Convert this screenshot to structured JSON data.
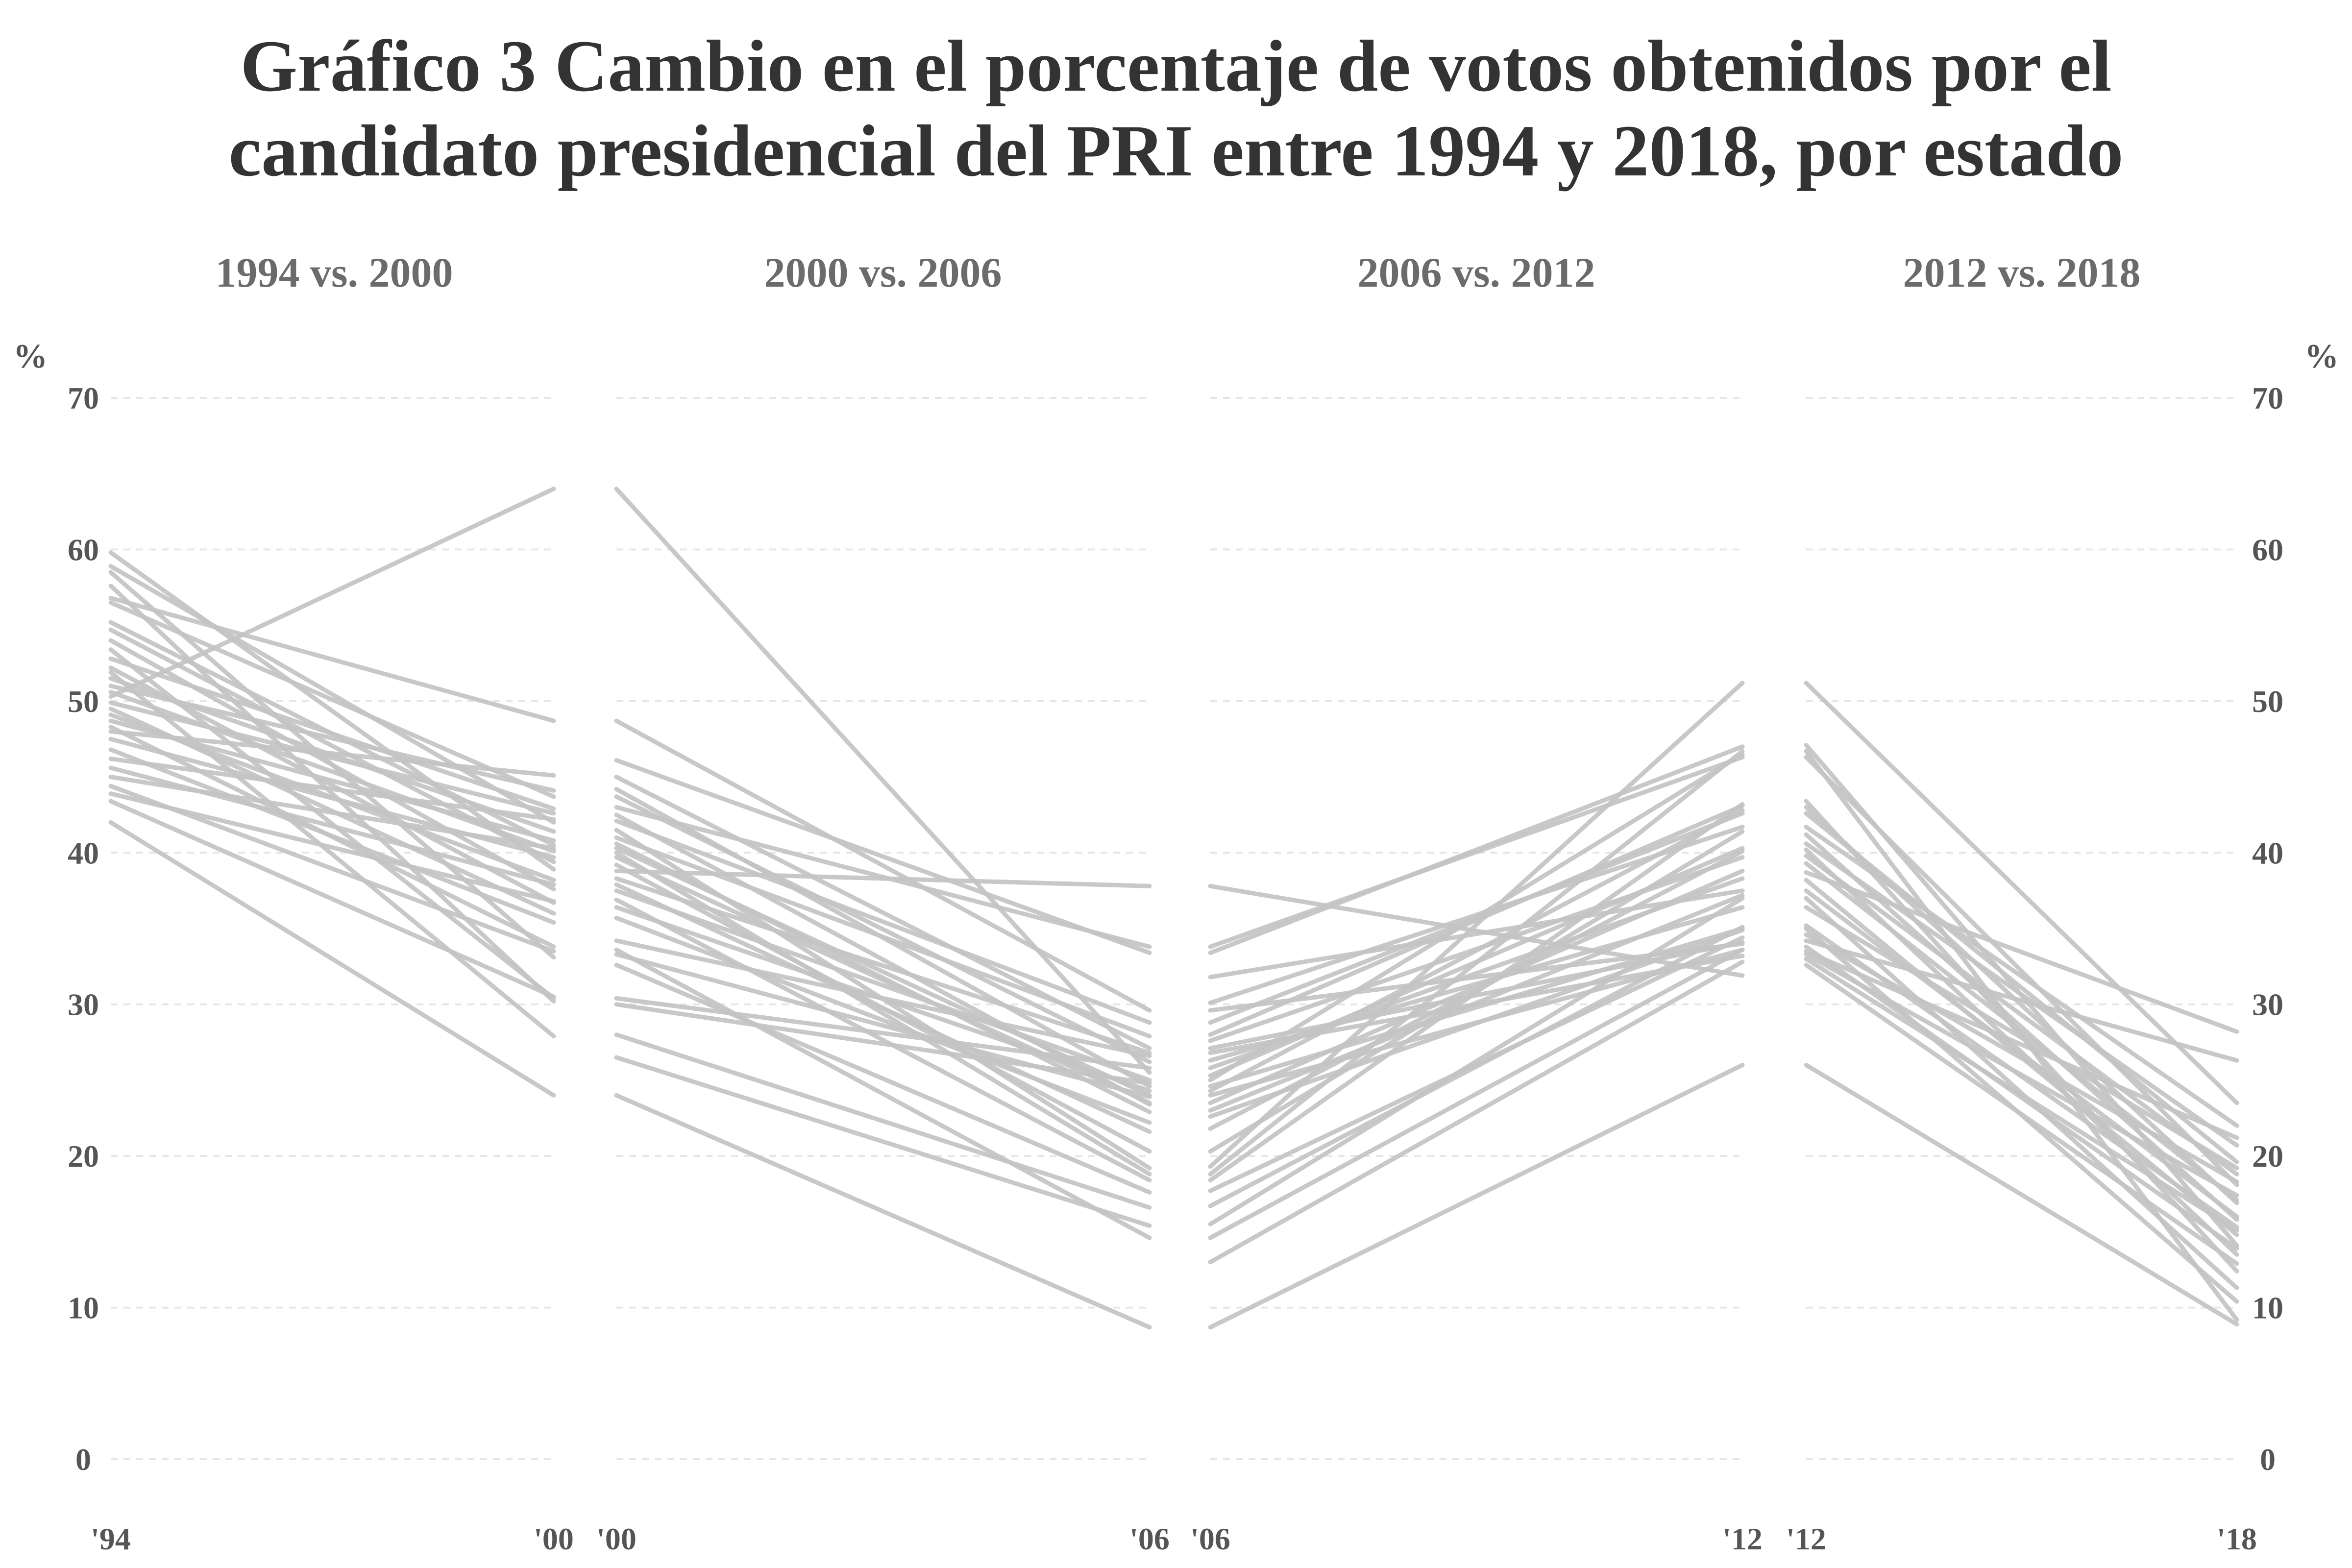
{
  "chart_data": {
    "type": "line",
    "title_lines": [
      "Gráfico 3 Cambio en el porcentaje de votos obtenidos por el",
      "candidato presidencial del PRI entre 1994 y 2018, por estado"
    ],
    "ylabel_left": "%",
    "ylabel_right": "%",
    "ylim": [
      0,
      70
    ],
    "yticks": [
      0,
      10,
      20,
      30,
      40,
      50,
      60,
      70
    ],
    "grid": "horizontal-dashed",
    "colors": {
      "line": "#c4c4c4",
      "grid": "#e6e6e6",
      "title": "#333333",
      "panel_title": "#6b6b6b",
      "tick": "#555555"
    },
    "panels": [
      {
        "title": "1994 vs. 2000",
        "x_labels": [
          "'94",
          "'00"
        ],
        "series": [
          [
            59.8,
            38.9
          ],
          [
            58.9,
            42.0
          ],
          [
            58.5,
            33.1
          ],
          [
            57.6,
            30.2
          ],
          [
            56.8,
            48.7
          ],
          [
            56.5,
            43.7
          ],
          [
            55.2,
            40.5
          ],
          [
            54.7,
            39.4
          ],
          [
            54.0,
            37.6
          ],
          [
            53.4,
            30.4
          ],
          [
            52.8,
            42.9
          ],
          [
            52.2,
            36.7
          ],
          [
            51.9,
            27.9
          ],
          [
            51.5,
            41.4
          ],
          [
            51.0,
            44.1
          ],
          [
            50.6,
            40.1
          ],
          [
            50.3,
            64.0
          ],
          [
            49.9,
            42.6
          ],
          [
            49.5,
            36.0
          ],
          [
            49.1,
            38.2
          ],
          [
            48.7,
            40.8
          ],
          [
            48.3,
            33.8
          ],
          [
            48.0,
            45.1
          ],
          [
            47.5,
            39.7
          ],
          [
            46.8,
            35.4
          ],
          [
            46.2,
            42.2
          ],
          [
            45.6,
            37.9
          ],
          [
            45.0,
            40.3
          ],
          [
            44.4,
            33.5
          ],
          [
            43.9,
            36.8
          ],
          [
            43.4,
            30.5
          ],
          [
            42.0,
            24.0
          ]
        ]
      },
      {
        "title": "2000 vs. 2006",
        "x_labels": [
          "'00",
          "'06"
        ],
        "series": [
          [
            64.0,
            25.5
          ],
          [
            48.7,
            29.6
          ],
          [
            46.1,
            33.4
          ],
          [
            45.0,
            27.1
          ],
          [
            44.2,
            24.6
          ],
          [
            43.7,
            26.2
          ],
          [
            43.0,
            33.8
          ],
          [
            42.5,
            23.4
          ],
          [
            42.1,
            28.8
          ],
          [
            41.5,
            19.2
          ],
          [
            41.0,
            27.9
          ],
          [
            40.6,
            22.9
          ],
          [
            40.3,
            24.0
          ],
          [
            40.0,
            18.8
          ],
          [
            39.7,
            23.5
          ],
          [
            39.2,
            20.3
          ],
          [
            38.8,
            37.8
          ],
          [
            38.3,
            26.8
          ],
          [
            37.9,
            21.6
          ],
          [
            37.5,
            25.0
          ],
          [
            36.9,
            18.4
          ],
          [
            36.4,
            24.3
          ],
          [
            35.7,
            22.2
          ],
          [
            34.2,
            26.6
          ],
          [
            33.6,
            14.6
          ],
          [
            33.3,
            23.9
          ],
          [
            32.6,
            17.6
          ],
          [
            30.4,
            25.8
          ],
          [
            30.0,
            24.8
          ],
          [
            28.0,
            16.6
          ],
          [
            26.5,
            15.4
          ],
          [
            24.0,
            8.7
          ]
        ]
      },
      {
        "title": "2006 vs. 2012",
        "x_labels": [
          "'06",
          "'12"
        ],
        "series": [
          [
            37.8,
            31.9
          ],
          [
            33.8,
            46.3
          ],
          [
            33.4,
            47.0
          ],
          [
            31.8,
            37.5
          ],
          [
            30.1,
            41.7
          ],
          [
            29.6,
            34.0
          ],
          [
            28.8,
            42.6
          ],
          [
            28.0,
            43.1
          ],
          [
            27.6,
            39.7
          ],
          [
            27.1,
            34.1
          ],
          [
            26.8,
            33.2
          ],
          [
            26.3,
            36.4
          ],
          [
            25.8,
            38.3
          ],
          [
            25.3,
            40.3
          ],
          [
            25.0,
            46.5
          ],
          [
            24.6,
            35.0
          ],
          [
            24.3,
            42.8
          ],
          [
            24.0,
            33.6
          ],
          [
            23.5,
            38.8
          ],
          [
            23.0,
            37.2
          ],
          [
            22.6,
            34.9
          ],
          [
            21.8,
            40.1
          ],
          [
            20.3,
            41.4
          ],
          [
            19.3,
            51.2
          ],
          [
            18.8,
            46.7
          ],
          [
            18.4,
            43.2
          ],
          [
            17.7,
            34.4
          ],
          [
            16.7,
            35.1
          ],
          [
            15.5,
            37.0
          ],
          [
            14.6,
            33.6
          ],
          [
            13.0,
            32.8
          ],
          [
            8.7,
            26.0
          ]
        ]
      },
      {
        "title": "2012 vs. 2018",
        "x_labels": [
          "'12",
          "'18"
        ],
        "series": [
          [
            51.2,
            23.5
          ],
          [
            47.1,
            14.1
          ],
          [
            46.7,
            9.2
          ],
          [
            46.3,
            18.1
          ],
          [
            43.4,
            12.4
          ],
          [
            43.0,
            16.9
          ],
          [
            42.6,
            19.6
          ],
          [
            41.7,
            22.0
          ],
          [
            41.2,
            15.8
          ],
          [
            40.6,
            20.7
          ],
          [
            40.2,
            13.5
          ],
          [
            39.8,
            18.8
          ],
          [
            39.3,
            17.1
          ],
          [
            38.7,
            28.2
          ],
          [
            38.2,
            14.8
          ],
          [
            37.5,
            16.0
          ],
          [
            37.0,
            11.3
          ],
          [
            36.4,
            19.2
          ],
          [
            35.2,
            15.3
          ],
          [
            35.0,
            10.4
          ],
          [
            34.6,
            18.3
          ],
          [
            34.2,
            26.3
          ],
          [
            33.8,
            13.9
          ],
          [
            33.5,
            21.2
          ],
          [
            33.3,
            17.4
          ],
          [
            33.0,
            15.1
          ],
          [
            32.6,
            12.9
          ],
          [
            26.0,
            8.9
          ]
        ]
      }
    ]
  }
}
